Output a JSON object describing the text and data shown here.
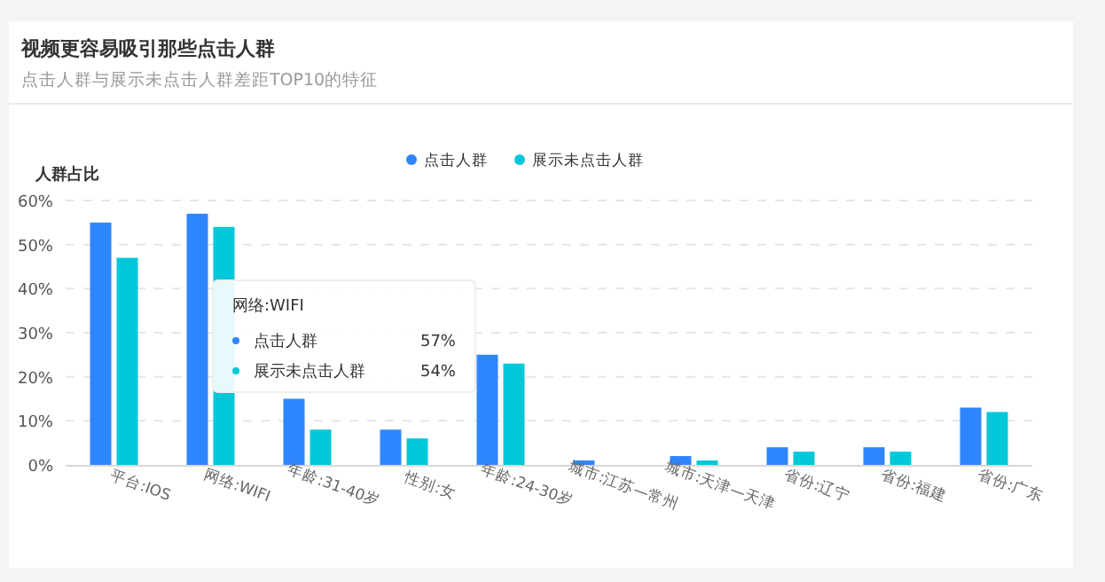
{
  "chart_data": {
    "type": "bar",
    "title": "视频更容易吸引那些点击人群",
    "subtitle": "点击人群与展示未点击人群差距TOP10的特征",
    "ylabel": "人群占比",
    "categories": [
      "平台:IOS",
      "网络:WIFI",
      "年龄:31-40岁",
      "性别:女",
      "年龄:24-30岁",
      "城市:江苏—常州",
      "城市:天津—天津",
      "省份:辽宁",
      "省份:福建",
      "省份:广东"
    ],
    "series": [
      {
        "name": "点击人群",
        "color": "#2e86ff",
        "values": [
          55,
          57,
          15,
          8,
          25,
          1,
          2,
          4,
          4,
          13
        ]
      },
      {
        "name": "展示未点击人群",
        "color": "#00c8d8",
        "values": [
          47,
          54,
          8,
          6,
          23,
          0,
          1,
          3,
          3,
          12
        ]
      }
    ],
    "ylim": [
      0,
      60
    ],
    "yticks": [
      {
        "value": 0,
        "label": "0%"
      },
      {
        "value": 10,
        "label": "10%"
      },
      {
        "value": 20,
        "label": "20%"
      },
      {
        "value": 30,
        "label": "30%"
      },
      {
        "value": 40,
        "label": "40%"
      },
      {
        "value": 50,
        "label": "50%"
      },
      {
        "value": 60,
        "label": "60%"
      }
    ],
    "grid": "y",
    "legend": "top",
    "annotations": [
      "网络:WIFI",
      "点击人群",
      "57%",
      "展示未点击人群",
      "54%"
    ]
  }
}
